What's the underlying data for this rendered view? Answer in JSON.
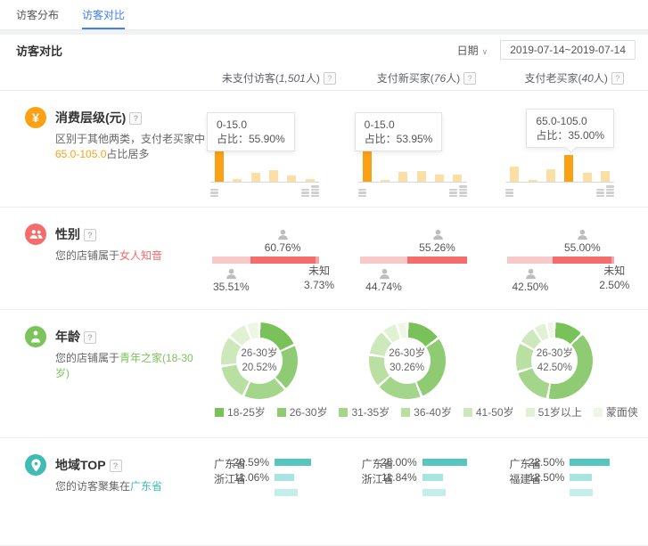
{
  "tabs": [
    {
      "label": "访客分布"
    },
    {
      "label": "访客对比"
    }
  ],
  "header": {
    "title": "访客对比",
    "date_label": "日期",
    "date_range": "2019-07-14~2019-07-14"
  },
  "columns": [
    {
      "prefix": "未支付访客(",
      "count": "1,501",
      "suffix": "人)"
    },
    {
      "prefix": "支付新买家(",
      "count": "76",
      "suffix": "人)"
    },
    {
      "prefix": "支付老买家(",
      "count": "40",
      "suffix": "人)"
    }
  ],
  "rows": {
    "spend": {
      "title": "消费层级(元)",
      "desc_line1": "区别于其他两类，支付老买家中",
      "desc_highlight": "65.0-105.0",
      "desc_rest": "占比居多",
      "tip_prefix": "占比："
    },
    "gender": {
      "title": "性别",
      "desc_prefix": "您的店铺属于",
      "desc_highlight": "女人知音",
      "unknown_label": "未知"
    },
    "age": {
      "title": "年龄",
      "desc_prefix": "您的店铺属于",
      "desc_highlight": "青年之家(18-30岁)"
    },
    "region": {
      "title": "地域TOP",
      "desc_prefix": "您的访客聚集在",
      "desc_highlight": "广东省"
    }
  },
  "icons": {
    "help": "?",
    "yen": "¥",
    "caret": "∨"
  },
  "colors": {
    "blue": "#3d7eff",
    "orange": "#faa116",
    "orange_light": "#fbdfa6",
    "red": "#f56c6c",
    "pink": "#f8c9c9",
    "pink_unknown": "#f3a6a6",
    "green": "#7bc35a",
    "teal": "#3fbcb3",
    "teal_bar": "#56c6bf",
    "teal_bar2": "#a8e5e0",
    "teal_bar3": "#c4eeea",
    "icon_gray": "#bdbdbd"
  },
  "chart_data": [
    {
      "id": "spend",
      "type": "bar",
      "title": "消费层级(元)",
      "ylabel": "占比 %",
      "series": [
        {
          "name": "未支付访客",
          "highlight_index": 0,
          "highlight_range": "0-15.0",
          "highlight_pct": "55.90%",
          "values": [
            55.9,
            4,
            12,
            15,
            8,
            4
          ]
        },
        {
          "name": "支付新买家",
          "highlight_index": 0,
          "highlight_range": "0-15.0",
          "highlight_pct": "53.95%",
          "values": [
            53.95,
            2,
            13,
            14,
            9,
            10
          ]
        },
        {
          "name": "支付老买家",
          "highlight_index": 3,
          "highlight_range": "65.0-105.0",
          "highlight_pct": "35.00%",
          "values": [
            20,
            2,
            17,
            35,
            12,
            14
          ]
        }
      ],
      "note": "non-highlighted bar values estimated from pixel heights"
    },
    {
      "id": "gender",
      "type": "bar",
      "title": "性别",
      "series": [
        {
          "name": "未支付访客",
          "female": 60.76,
          "male": 35.51,
          "unknown": 3.73
        },
        {
          "name": "支付新买家",
          "female": 55.26,
          "male": 44.74,
          "unknown": 0
        },
        {
          "name": "支付老买家",
          "female": 55.0,
          "male": 42.5,
          "unknown": 2.5
        }
      ]
    },
    {
      "id": "age",
      "type": "pie",
      "title": "年龄",
      "categories": [
        "18-25岁",
        "26-30岁",
        "31-35岁",
        "36-40岁",
        "41-50岁",
        "51岁以上",
        "蒙面侠"
      ],
      "palette": [
        "#79c25a",
        "#8ecb72",
        "#a3d58a",
        "#b9dfa3",
        "#cde9bc",
        "#e0f1d4",
        "#eef7e6"
      ],
      "series": [
        {
          "name": "未支付访客",
          "center_label": "26-30岁",
          "center_pct": "20.52%",
          "values": [
            18.5,
            20.52,
            19,
            16,
            13,
            8,
            4.98
          ]
        },
        {
          "name": "支付新买家",
          "center_label": "26-30岁",
          "center_pct": "30.26%",
          "values": [
            15,
            30.26,
            20,
            14,
            11,
            6,
            3.74
          ]
        },
        {
          "name": "支付老买家",
          "center_label": "26-30岁",
          "center_pct": "42.50%",
          "values": [
            12.5,
            42.5,
            17.5,
            12.5,
            7.5,
            5,
            2.5
          ]
        }
      ],
      "legend_position": "bottom",
      "note": "only the center-labeled segment percent is shown; other segment values estimated"
    },
    {
      "id": "region",
      "type": "bar",
      "title": "地域TOP",
      "series": [
        {
          "name": "未支付访客",
          "items": [
            {
              "label": "广东省",
              "pct": 20.59
            },
            {
              "label": "浙江省",
              "pct": 11.06
            },
            {
              "label": "",
              "pct": null
            }
          ]
        },
        {
          "name": "支付新买家",
          "items": [
            {
              "label": "广东省",
              "pct": 25.0
            },
            {
              "label": "浙江省",
              "pct": 11.84
            },
            {
              "label": "",
              "pct": null
            }
          ]
        },
        {
          "name": "支付老买家",
          "items": [
            {
              "label": "广东省",
              "pct": 22.5
            },
            {
              "label": "福建省",
              "pct": 12.5
            },
            {
              "label": "",
              "pct": null
            }
          ]
        }
      ],
      "note": "third row partially cut off at bottom of screenshot"
    }
  ]
}
